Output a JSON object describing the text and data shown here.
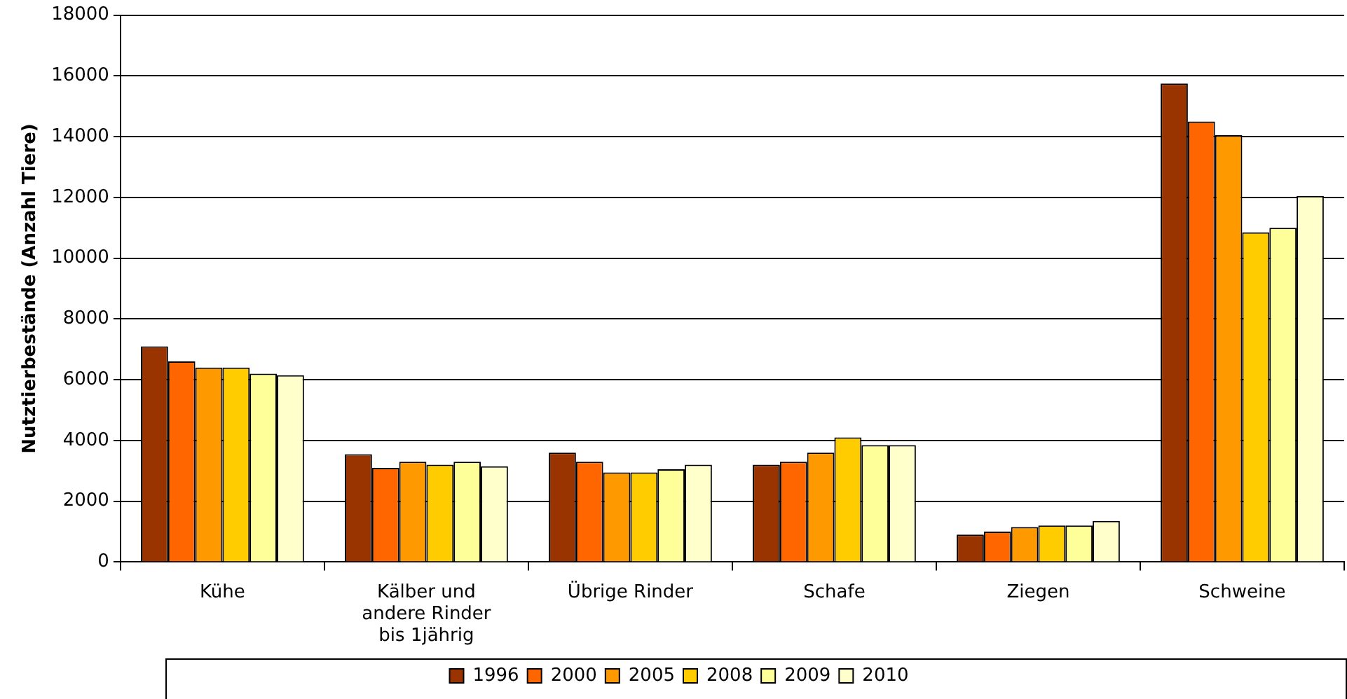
{
  "chart_data": {
    "type": "bar",
    "ylabel": "Nutztierbestände (Anzahl Tiere)",
    "categories": [
      "Kühe",
      "Kälber und andere Rinder bis 1jährig",
      "Übrige Rinder",
      "Schafe",
      "Ziegen",
      "Schweine"
    ],
    "series": [
      {
        "name": "1996",
        "color": "#993300",
        "values": [
          7100,
          3550,
          3600,
          3200,
          900,
          15750
        ]
      },
      {
        "name": "2000",
        "color": "#ff6600",
        "values": [
          6600,
          3100,
          3300,
          3300,
          1000,
          14500
        ]
      },
      {
        "name": "2005",
        "color": "#ff9900",
        "values": [
          6400,
          3300,
          2950,
          3600,
          1150,
          14050
        ]
      },
      {
        "name": "2008",
        "color": "#ffcc00",
        "values": [
          6400,
          3200,
          2950,
          4100,
          1200,
          10850
        ]
      },
      {
        "name": "2009",
        "color": "#ffff99",
        "values": [
          6200,
          3300,
          3050,
          3850,
          1200,
          11000
        ]
      },
      {
        "name": "2010",
        "color": "#ffffcc",
        "values": [
          6150,
          3150,
          3200,
          3850,
          1350,
          12050
        ]
      }
    ],
    "ylim": [
      0,
      18000
    ],
    "yticks": [
      0,
      2000,
      4000,
      6000,
      8000,
      10000,
      12000,
      14000,
      16000,
      18000
    ],
    "grid": "y",
    "legend": "bottom"
  }
}
